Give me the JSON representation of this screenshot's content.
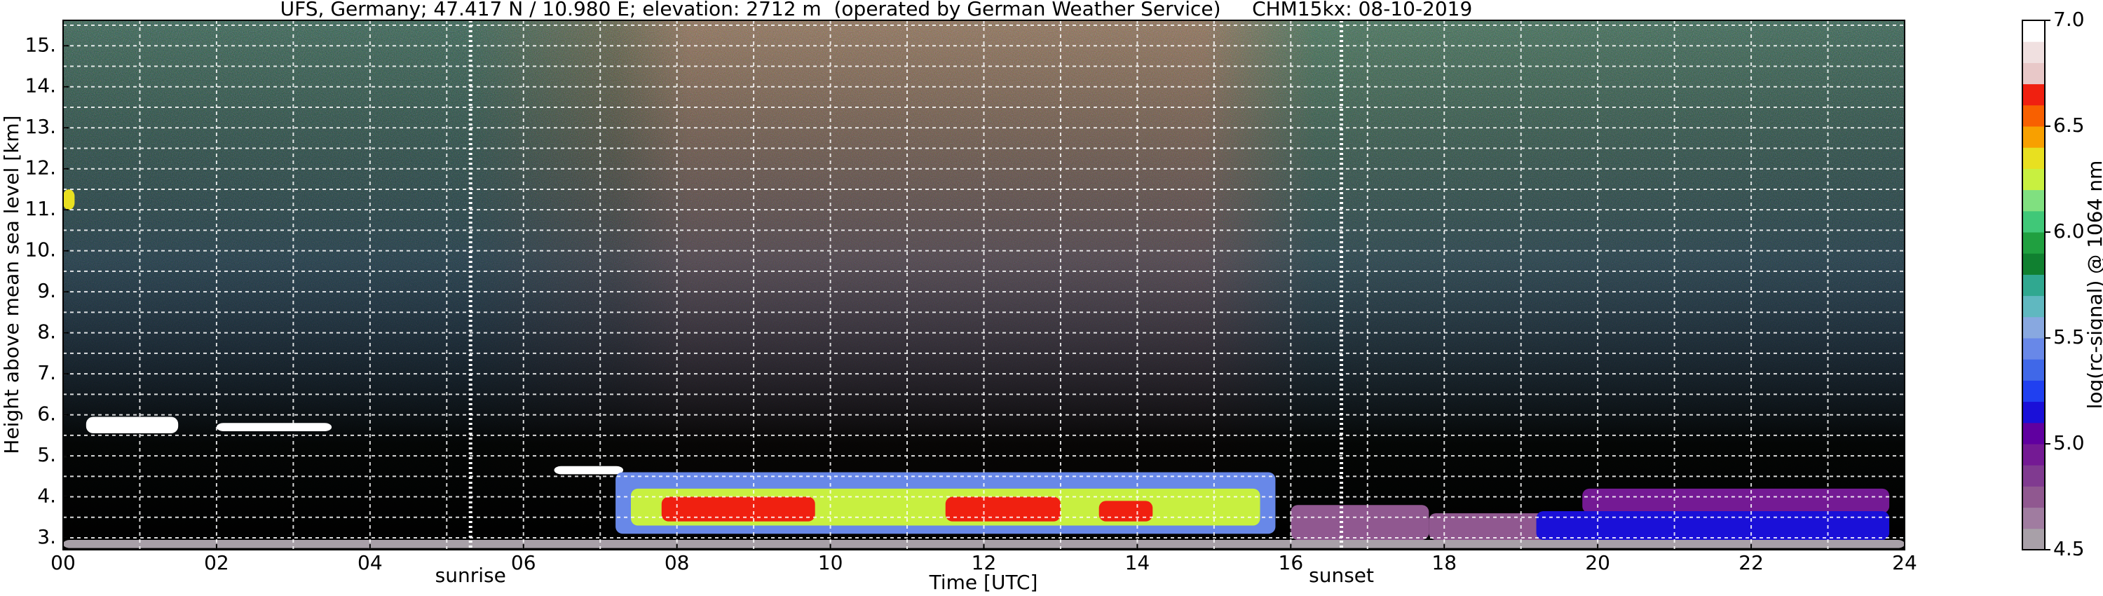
{
  "chart_data": {
    "type": "heatmap",
    "title": "UFS, Germany; 47.417 N / 10.980 E; elevation: 2712 m  (operated by German Weather Service)     CHM15kx: 08-10-2019",
    "x_label": "Time [UTC]",
    "y_label": "Height above mean sea level [km]",
    "xlim": [
      0,
      24
    ],
    "xticks": [
      {
        "value": 0,
        "label": "00"
      },
      {
        "value": 2,
        "label": "02"
      },
      {
        "value": 4,
        "label": "04"
      },
      {
        "value": 6,
        "label": "06"
      },
      {
        "value": 8,
        "label": "08"
      },
      {
        "value": 10,
        "label": "10"
      },
      {
        "value": 12,
        "label": "12"
      },
      {
        "value": 14,
        "label": "14"
      },
      {
        "value": 16,
        "label": "16"
      },
      {
        "value": 18,
        "label": "18"
      },
      {
        "value": 20,
        "label": "20"
      },
      {
        "value": 22,
        "label": "22"
      },
      {
        "value": 24,
        "label": "24"
      }
    ],
    "xminorticks": [
      1,
      3,
      5,
      7,
      9,
      11,
      13,
      15,
      17,
      19,
      21,
      23
    ],
    "ylim": [
      2.71,
      15.62
    ],
    "yticks": [
      {
        "value": 3,
        "label": "3."
      },
      {
        "value": 4,
        "label": "4."
      },
      {
        "value": 5,
        "label": "5."
      },
      {
        "value": 6,
        "label": "6."
      },
      {
        "value": 7,
        "label": "7."
      },
      {
        "value": 8,
        "label": "8."
      },
      {
        "value": 9,
        "label": "9."
      },
      {
        "value": 10,
        "label": "10."
      },
      {
        "value": 11,
        "label": "11."
      },
      {
        "value": 12,
        "label": "12."
      },
      {
        "value": 13,
        "label": "13."
      },
      {
        "value": 14,
        "label": "14."
      },
      {
        "value": 15,
        "label": "15."
      }
    ],
    "yminorticks": [
      3.5,
      4.5,
      5.5,
      6.5,
      7.5,
      8.5,
      9.5,
      10.5,
      11.5,
      12.5,
      13.5,
      14.5,
      15.5
    ],
    "grid": true,
    "events": [
      {
        "name": "sunrise",
        "time": 5.31
      },
      {
        "name": "sunset",
        "time": 16.66
      }
    ],
    "colorbar": {
      "label": "log(rc-signal) @ 1064 nm",
      "lim": [
        4.5,
        7.0
      ],
      "ticks": [
        {
          "value": 4.5,
          "label": "4.5"
        },
        {
          "value": 5.0,
          "label": "5.0"
        },
        {
          "value": 5.5,
          "label": "5.5"
        },
        {
          "value": 6.0,
          "label": "6.0"
        },
        {
          "value": 6.5,
          "label": "6.5"
        },
        {
          "value": 7.0,
          "label": "7.0"
        }
      ],
      "colors": [
        "#a8a0a8",
        "#a07ca0",
        "#905890",
        "#803a90",
        "#741a94",
        "#6000a0",
        "#1a10d8",
        "#2040f0",
        "#4068e8",
        "#6888e8",
        "#88a8e0",
        "#60b8c0",
        "#30a890",
        "#108030",
        "#20a040",
        "#40c878",
        "#80e080",
        "#c8f040",
        "#e8e020",
        "#f8a000",
        "#f86000",
        "#f02010",
        "#e8c8c8",
        "#f0e0e0",
        "#ffffff"
      ]
    },
    "layers": [
      {
        "t0": 0.0,
        "t1": 24.0,
        "h0": 2.75,
        "h1": 2.95,
        "value": 4.6
      },
      {
        "t0": 0.0,
        "t1": 0.15,
        "h0": 11.0,
        "h1": 11.5,
        "value": 6.3
      },
      {
        "t0": 0.3,
        "t1": 1.5,
        "h0": 5.55,
        "h1": 5.95,
        "value": 6.95
      },
      {
        "t0": 2.0,
        "t1": 3.5,
        "h0": 5.6,
        "h1": 5.8,
        "value": 6.95
      },
      {
        "t0": 6.4,
        "t1": 7.3,
        "h0": 4.55,
        "h1": 4.75,
        "value": 6.95
      },
      {
        "t0": 7.2,
        "t1": 15.8,
        "h0": 3.1,
        "h1": 4.6,
        "value": 5.45
      },
      {
        "t0": 7.4,
        "t1": 15.6,
        "h0": 3.3,
        "h1": 4.2,
        "value": 6.25
      },
      {
        "t0": 7.8,
        "t1": 9.8,
        "h0": 3.4,
        "h1": 4.0,
        "value": 6.65
      },
      {
        "t0": 11.5,
        "t1": 13.0,
        "h0": 3.4,
        "h1": 4.0,
        "value": 6.65
      },
      {
        "t0": 13.5,
        "t1": 14.2,
        "h0": 3.4,
        "h1": 3.9,
        "value": 6.65
      },
      {
        "t0": 16.0,
        "t1": 17.8,
        "h0": 2.95,
        "h1": 3.8,
        "value": 4.75
      },
      {
        "t0": 17.8,
        "t1": 19.5,
        "h0": 2.95,
        "h1": 3.6,
        "value": 4.75
      },
      {
        "t0": 19.8,
        "t1": 23.8,
        "h0": 3.6,
        "h1": 4.2,
        "value": 4.95
      },
      {
        "t0": 19.2,
        "t1": 23.8,
        "h0": 2.95,
        "h1": 3.65,
        "value": 5.15
      }
    ]
  }
}
